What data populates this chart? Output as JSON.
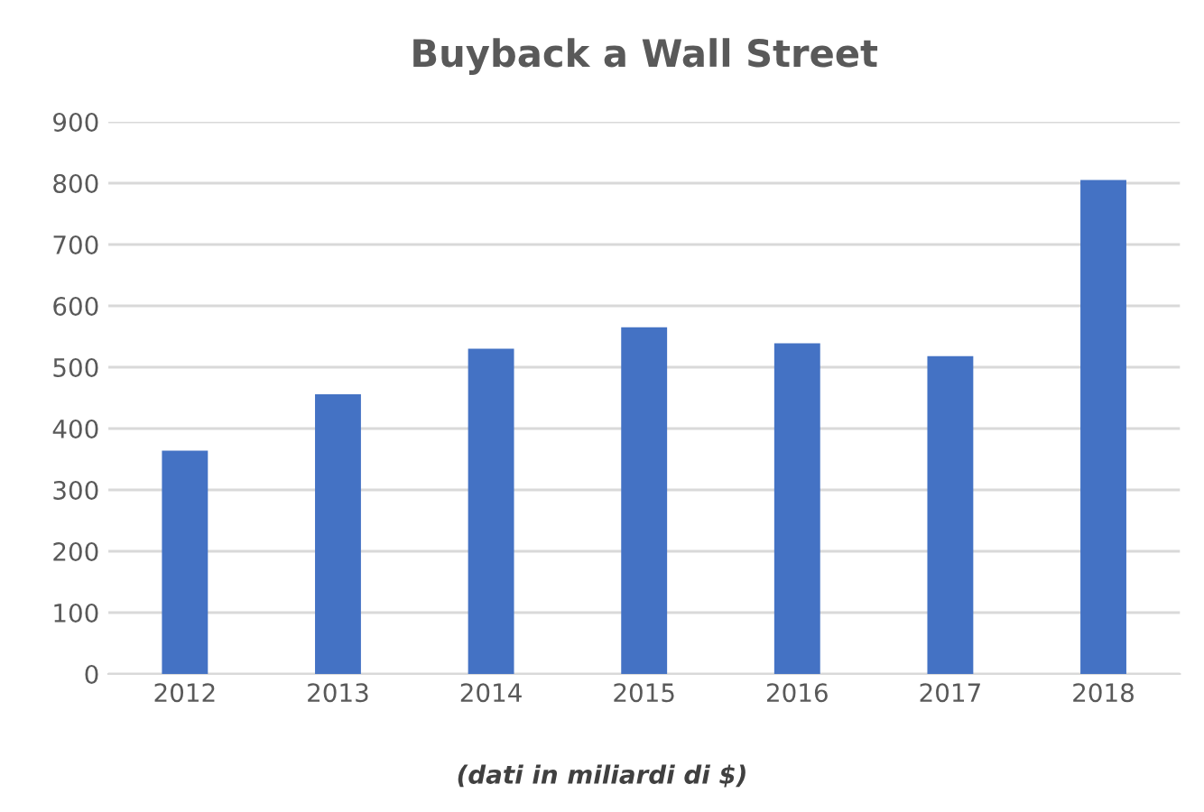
{
  "chart_data": {
    "type": "bar",
    "title": "Buyback a Wall Street",
    "categories": [
      "2012",
      "2013",
      "2014",
      "2015",
      "2016",
      "2017",
      "2018"
    ],
    "values": [
      364,
      456,
      530,
      565,
      539,
      518,
      805
    ],
    "color": "#4472c4",
    "ylim": [
      0,
      900
    ],
    "yticks": [
      0,
      100,
      200,
      300,
      400,
      500,
      600,
      700,
      800,
      900
    ],
    "grid": "y",
    "annotations": [
      "(dati in miliardi di $)"
    ]
  }
}
